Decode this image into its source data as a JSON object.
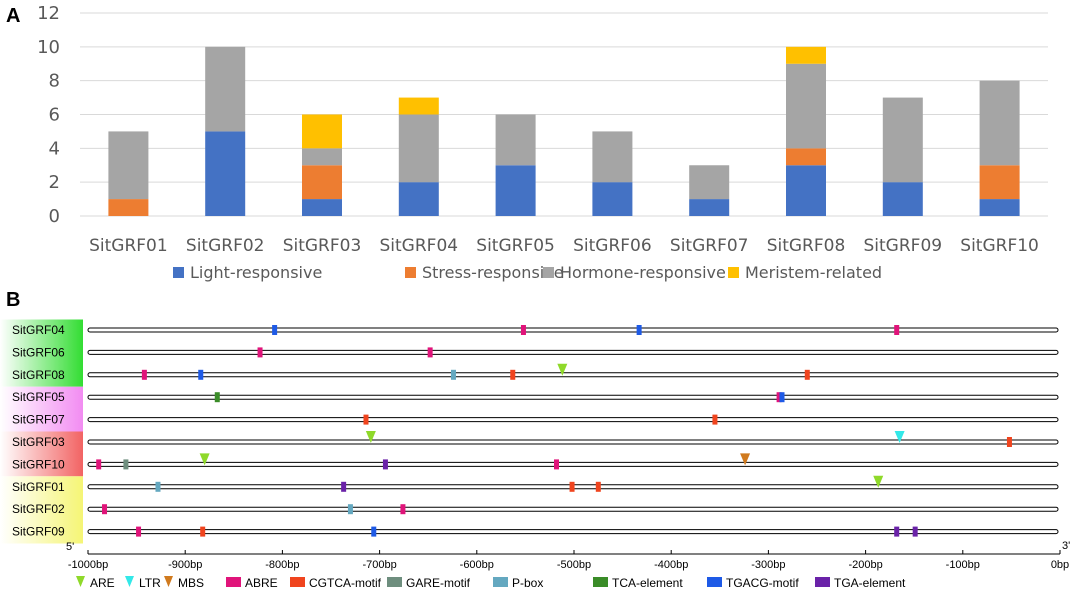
{
  "chart_data": [
    {
      "type": "bar",
      "stacked": true,
      "panel": "A",
      "categories": [
        "SitGRF01",
        "SitGRF02",
        "SitGRF03",
        "SitGRF04",
        "SitGRF05",
        "SitGRF06",
        "SitGRF07",
        "SitGRF08",
        "SitGRF09",
        "SitGRF10"
      ],
      "series": [
        {
          "name": "Light-responsive",
          "color": "#4472C4",
          "values": [
            0,
            5,
            1,
            2,
            3,
            2,
            1,
            3,
            2,
            1
          ]
        },
        {
          "name": "Stress-responsive",
          "color": "#ED7D31",
          "values": [
            1,
            0,
            2,
            0,
            0,
            0,
            0,
            1,
            0,
            2
          ]
        },
        {
          "name": "Hormone-responsive",
          "color": "#A5A5A5",
          "values": [
            4,
            5,
            1,
            4,
            3,
            3,
            2,
            5,
            5,
            5
          ]
        },
        {
          "name": "Meristem-related",
          "color": "#FFC000",
          "values": [
            0,
            0,
            2,
            1,
            0,
            0,
            0,
            1,
            0,
            0
          ]
        }
      ],
      "ylim": [
        0,
        12
      ],
      "yticks": [
        0,
        2,
        4,
        6,
        8,
        10,
        12
      ],
      "grid": true,
      "legend": "bottom"
    },
    {
      "type": "diagram",
      "panel": "B",
      "xlim": [
        -1000,
        0
      ],
      "xticks": [
        -1000,
        -900,
        -800,
        -700,
        -600,
        -500,
        -400,
        -300,
        -200,
        -100,
        0
      ],
      "tick_suffix": "bp",
      "five_prime": "5'",
      "three_prime": "3'",
      "genes": [
        {
          "name": "SitGRF04",
          "group_color": "#33DD33"
        },
        {
          "name": "SitGRF06",
          "group_color": "#33DD33"
        },
        {
          "name": "SitGRF08",
          "group_color": "#33DD33"
        },
        {
          "name": "SitGRF05",
          "group_color": "#F28CF2"
        },
        {
          "name": "SitGRF07",
          "group_color": "#F28CF2"
        },
        {
          "name": "SitGRF03",
          "group_color": "#F26363"
        },
        {
          "name": "SitGRF10",
          "group_color": "#F26363"
        },
        {
          "name": "SitGRF01",
          "group_color": "#F5F575"
        },
        {
          "name": "SitGRF02",
          "group_color": "#F5F575"
        },
        {
          "name": "SitGRF09",
          "group_color": "#F5F575"
        }
      ],
      "element_types": [
        {
          "name": "ARE",
          "color": "#8FD92A",
          "shape": "triangle"
        },
        {
          "name": "LTR",
          "color": "#33E8E8",
          "shape": "triangle"
        },
        {
          "name": "MBS",
          "color": "#D07A1E",
          "shape": "triangle"
        },
        {
          "name": "ABRE",
          "color": "#E0147A",
          "shape": "rect"
        },
        {
          "name": "CGTCA-motif",
          "color": "#F0441E",
          "shape": "rect"
        },
        {
          "name": "GARE-motif",
          "color": "#6E8E7E",
          "shape": "rect"
        },
        {
          "name": "P-box",
          "color": "#64A8C0",
          "shape": "rect"
        },
        {
          "name": "TCA-element",
          "color": "#3A8C28",
          "shape": "rect"
        },
        {
          "name": "TGACG-motif",
          "color": "#1E5AE6",
          "shape": "rect"
        },
        {
          "name": "TGA-element",
          "color": "#6A22A8",
          "shape": "rect"
        }
      ],
      "elements": [
        {
          "gene": 0,
          "type": "TGACG-motif",
          "pos": -808
        },
        {
          "gene": 0,
          "type": "ABRE",
          "pos": -552
        },
        {
          "gene": 0,
          "type": "TGACG-motif",
          "pos": -433
        },
        {
          "gene": 0,
          "type": "ABRE",
          "pos": -168
        },
        {
          "gene": 1,
          "type": "ABRE",
          "pos": -823
        },
        {
          "gene": 1,
          "type": "ABRE",
          "pos": -648
        },
        {
          "gene": 2,
          "type": "ABRE",
          "pos": -942
        },
        {
          "gene": 2,
          "type": "TGACG-motif",
          "pos": -884
        },
        {
          "gene": 2,
          "type": "P-box",
          "pos": -624
        },
        {
          "gene": 2,
          "type": "CGTCA-motif",
          "pos": -563
        },
        {
          "gene": 2,
          "type": "ARE",
          "pos": -512
        },
        {
          "gene": 2,
          "type": "CGTCA-motif",
          "pos": -260
        },
        {
          "gene": 3,
          "type": "TCA-element",
          "pos": -867
        },
        {
          "gene": 3,
          "type": "ABRE",
          "pos": -289
        },
        {
          "gene": 3,
          "type": "TGACG-motif",
          "pos": -286
        },
        {
          "gene": 4,
          "type": "CGTCA-motif",
          "pos": -714
        },
        {
          "gene": 4,
          "type": "CGTCA-motif",
          "pos": -355
        },
        {
          "gene": 5,
          "type": "ARE",
          "pos": -709
        },
        {
          "gene": 5,
          "type": "LTR",
          "pos": -165
        },
        {
          "gene": 5,
          "type": "CGTCA-motif",
          "pos": -52
        },
        {
          "gene": 6,
          "type": "ABRE",
          "pos": -989
        },
        {
          "gene": 6,
          "type": "GARE-motif",
          "pos": -961
        },
        {
          "gene": 6,
          "type": "ARE",
          "pos": -880
        },
        {
          "gene": 6,
          "type": "TGA-element",
          "pos": -694
        },
        {
          "gene": 6,
          "type": "ABRE",
          "pos": -518
        },
        {
          "gene": 6,
          "type": "MBS",
          "pos": -324
        },
        {
          "gene": 7,
          "type": "P-box",
          "pos": -928
        },
        {
          "gene": 7,
          "type": "TGA-element",
          "pos": -737
        },
        {
          "gene": 7,
          "type": "CGTCA-motif",
          "pos": -502
        },
        {
          "gene": 7,
          "type": "CGTCA-motif",
          "pos": -475
        },
        {
          "gene": 7,
          "type": "ARE",
          "pos": -187
        },
        {
          "gene": 8,
          "type": "ABRE",
          "pos": -983
        },
        {
          "gene": 8,
          "type": "P-box",
          "pos": -730
        },
        {
          "gene": 8,
          "type": "ABRE",
          "pos": -676
        },
        {
          "gene": 9,
          "type": "ABRE",
          "pos": -948
        },
        {
          "gene": 9,
          "type": "CGTCA-motif",
          "pos": -882
        },
        {
          "gene": 9,
          "type": "TGACG-motif",
          "pos": -706
        },
        {
          "gene": 9,
          "type": "TGA-element",
          "pos": -168
        },
        {
          "gene": 9,
          "type": "TGA-element",
          "pos": -149
        }
      ]
    }
  ],
  "panel_labels": {
    "a": "A",
    "b": "B"
  }
}
